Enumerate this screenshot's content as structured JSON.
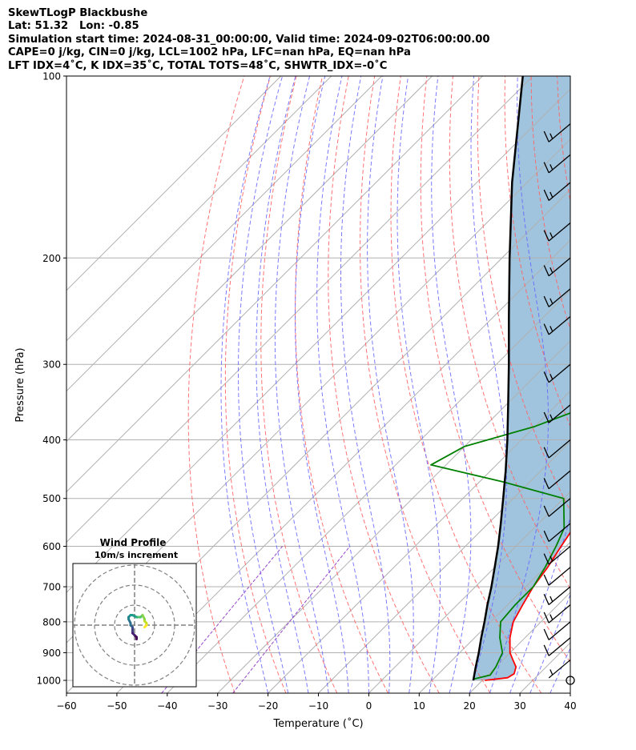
{
  "header": {
    "line1": "SkewTLogP Blackbushe",
    "line2": "Lat: 51.32   Lon: -0.85",
    "line3": "Simulation start time: 2024-08-31_00:00:00, Valid time: 2024-09-02T06:00:00.00",
    "line4": "CAPE=0 j/kg, CIN=0 j/kg, LCL=1002 hPa, LFC=nan hPa, EQ=nan hPa",
    "line5": "LFT IDX=4˚C, K IDX=35˚C, TOTAL TOTS=48˚C, SHWTR_IDX=-0˚C"
  },
  "chart_data": [
    {
      "type": "line",
      "title": "",
      "xlabel": "Temperature (˚C)",
      "ylabel": "Pressure (hPa)",
      "xlim": [
        -60,
        40
      ],
      "ylim": [
        1050,
        100
      ],
      "y_scale": "log",
      "x_ticks": [
        "−60",
        "−50",
        "−40",
        "−30",
        "−20",
        "−10",
        "0",
        "10",
        "20",
        "30",
        "40"
      ],
      "y_ticks": [
        "100",
        "200",
        "300",
        "400",
        "500",
        "600",
        "700",
        "800",
        "900",
        "1000"
      ],
      "grid": true,
      "colors": {
        "temperature": "#ff0000",
        "dewpoint": "#008000",
        "parcel": "#000000",
        "shade": "#a0c4de",
        "dry_adiabat": "#ff6464",
        "moist_adiabat": "#6464ff",
        "mixing_ratio": "#9646c8"
      },
      "series": [
        {
          "id": "temperature",
          "color": "#ff0000",
          "points": [
            [
              1000,
              20.5
            ],
            [
              990,
              24.5
            ],
            [
              975,
              25
            ],
            [
              950,
              24
            ],
            [
              925,
              22
            ],
            [
              900,
              20
            ],
            [
              850,
              17
            ],
            [
              800,
              14.5
            ],
            [
              750,
              13
            ],
            [
              700,
              11.5
            ],
            [
              650,
              10.5
            ],
            [
              600,
              9
            ],
            [
              550,
              7.5
            ],
            [
              500,
              5.5
            ],
            [
              450,
              2.5
            ],
            [
              400,
              -1.5
            ],
            [
              350,
              -6
            ],
            [
              300,
              -12.5
            ],
            [
              250,
              -21
            ],
            [
              200,
              -31.5
            ],
            [
              180,
              -31
            ],
            [
              160,
              -30.5
            ],
            [
              150,
              -32
            ],
            [
              140,
              -33
            ],
            [
              130,
              -34
            ],
            [
              120,
              -36.5
            ],
            [
              110,
              -38.5
            ],
            [
              100,
              -41
            ]
          ]
        },
        {
          "id": "dewpoint",
          "color": "#008000",
          "points": [
            [
              995,
              18
            ],
            [
              980,
              20.5
            ],
            [
              950,
              20
            ],
            [
              900,
              18.5
            ],
            [
              850,
              15
            ],
            [
              800,
              12
            ],
            [
              750,
              11.5
            ],
            [
              700,
              11.5
            ],
            [
              650,
              10
            ],
            [
              600,
              8
            ],
            [
              560,
              6
            ],
            [
              500,
              0
            ],
            [
              470,
              -15
            ],
            [
              440,
              -33
            ],
            [
              410,
              -30
            ],
            [
              380,
              -20
            ],
            [
              350,
              -13
            ],
            [
              330,
              -11
            ],
            [
              300,
              -14
            ],
            [
              250,
              -23
            ],
            [
              200,
              -36.5
            ],
            [
              185,
              -42
            ],
            [
              170,
              -42
            ],
            [
              160,
              -45
            ],
            [
              150,
              -50
            ],
            [
              140,
              -55
            ],
            [
              120,
              -58
            ],
            [
              100,
              -56
            ]
          ]
        },
        {
          "id": "parcel",
          "color": "#000000",
          "points": [
            [
              1000,
              18.2
            ],
            [
              950,
              16
            ],
            [
              900,
              13.8
            ],
            [
              850,
              11.3
            ],
            [
              800,
              8.8
            ],
            [
              750,
              6
            ],
            [
              700,
              3.2
            ],
            [
              650,
              0
            ],
            [
              600,
              -3.5
            ],
            [
              550,
              -7.5
            ],
            [
              500,
              -12
            ],
            [
              450,
              -17
            ],
            [
              400,
              -22.8
            ],
            [
              350,
              -29.6
            ],
            [
              300,
              -37.5
            ],
            [
              250,
              -47
            ],
            [
              200,
              -58.5
            ],
            [
              150,
              -73
            ],
            [
              100,
              -92
            ]
          ]
        }
      ],
      "barbs": [
        {
          "p": 1000,
          "knots": 0
        },
        {
          "p": 925,
          "knots": 5
        },
        {
          "p": 850,
          "knots": 10
        },
        {
          "p": 800,
          "knots": 10
        },
        {
          "p": 750,
          "knots": 15
        },
        {
          "p": 700,
          "knots": 15
        },
        {
          "p": 650,
          "knots": 10
        },
        {
          "p": 600,
          "knots": 15
        },
        {
          "p": 550,
          "knots": 10
        },
        {
          "p": 500,
          "knots": 10
        },
        {
          "p": 450,
          "knots": 10
        },
        {
          "p": 400,
          "knots": 10
        },
        {
          "p": 350,
          "knots": 15
        },
        {
          "p": 300,
          "knots": 15
        },
        {
          "p": 250,
          "knots": 15
        },
        {
          "p": 225,
          "knots": 15
        },
        {
          "p": 200,
          "knots": 15
        },
        {
          "p": 175,
          "knots": 15
        },
        {
          "p": 150,
          "knots": 15
        },
        {
          "p": 135,
          "knots": 15
        },
        {
          "p": 120,
          "knots": 15
        }
      ]
    },
    {
      "type": "scatter",
      "title": "Wind Profile",
      "subtitle": "10m/s increment",
      "rings": 3,
      "hodograph": [
        [
          1,
          -7
        ],
        [
          1,
          -6
        ],
        [
          0,
          -5
        ],
        [
          -1,
          -4
        ],
        [
          -1,
          -3
        ],
        [
          -1,
          -2
        ],
        [
          -1,
          -1
        ],
        [
          -2,
          0
        ],
        [
          -2,
          1
        ],
        [
          -3,
          3
        ],
        [
          -3,
          4
        ],
        [
          -2,
          5
        ],
        [
          -1,
          5
        ],
        [
          1,
          4
        ],
        [
          2,
          4
        ],
        [
          3,
          4
        ],
        [
          4,
          5
        ],
        [
          5,
          3
        ],
        [
          5,
          2
        ],
        [
          6,
          1
        ],
        [
          6,
          0
        ],
        [
          5,
          -1
        ]
      ]
    }
  ]
}
